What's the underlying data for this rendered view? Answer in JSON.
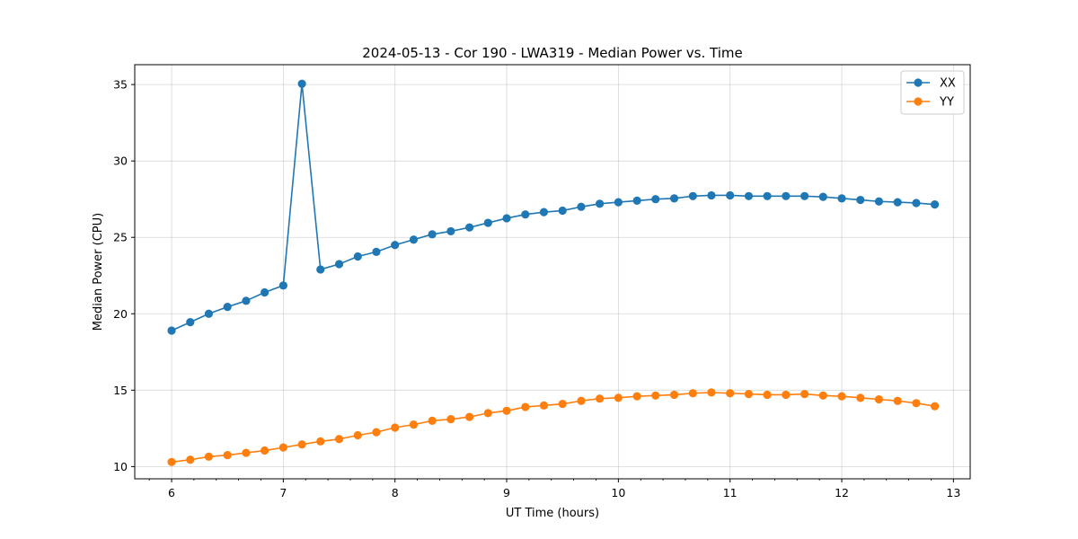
{
  "chart_data": {
    "type": "line",
    "title": "2024-05-13 - Cor 190 - LWA319 - Median Power vs. Time",
    "xlabel": "UT Time (hours)",
    "ylabel": "Median Power (CPU)",
    "xlim": [
      5.67,
      13.15
    ],
    "ylim": [
      9.2,
      36.3
    ],
    "xticks": [
      6,
      7,
      8,
      9,
      10,
      11,
      12,
      13
    ],
    "yticks": [
      10,
      15,
      20,
      25,
      30,
      35
    ],
    "grid": true,
    "legend_position": "top-right",
    "x": [
      6.0,
      6.167,
      6.333,
      6.5,
      6.667,
      6.833,
      7.0,
      7.167,
      7.333,
      7.5,
      7.667,
      7.833,
      8.0,
      8.167,
      8.333,
      8.5,
      8.667,
      8.833,
      9.0,
      9.167,
      9.333,
      9.5,
      9.667,
      9.833,
      10.0,
      10.167,
      10.333,
      10.5,
      10.667,
      10.833,
      11.0,
      11.167,
      11.333,
      11.5,
      11.667,
      11.833,
      12.0,
      12.167,
      12.333,
      12.5,
      12.667,
      12.833
    ],
    "series": [
      {
        "name": "XX",
        "color": "#1f77b4",
        "values": [
          18.9,
          19.45,
          20.0,
          20.45,
          20.85,
          21.4,
          21.85,
          35.05,
          22.9,
          23.25,
          23.75,
          24.05,
          24.5,
          24.85,
          25.2,
          25.4,
          25.65,
          25.95,
          26.25,
          26.5,
          26.65,
          26.75,
          27.0,
          27.2,
          27.3,
          27.4,
          27.5,
          27.55,
          27.7,
          27.75,
          27.75,
          27.7,
          27.7,
          27.7,
          27.7,
          27.65,
          27.55,
          27.45,
          27.35,
          27.3,
          27.25,
          27.15
        ]
      },
      {
        "name": "YY",
        "color": "#ff7f0e",
        "values": [
          10.3,
          10.45,
          10.65,
          10.75,
          10.9,
          11.05,
          11.25,
          11.45,
          11.65,
          11.8,
          12.05,
          12.25,
          12.55,
          12.75,
          13.0,
          13.1,
          13.25,
          13.5,
          13.65,
          13.9,
          14.0,
          14.1,
          14.3,
          14.45,
          14.5,
          14.6,
          14.65,
          14.7,
          14.8,
          14.85,
          14.8,
          14.75,
          14.7,
          14.7,
          14.75,
          14.65,
          14.6,
          14.5,
          14.4,
          14.3,
          14.15,
          13.95
        ]
      }
    ]
  }
}
